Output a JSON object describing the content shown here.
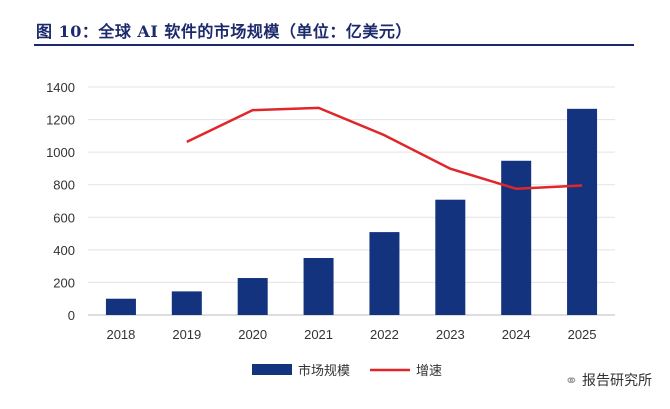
{
  "title": "图 10：全球 AI 软件的市场规模（单位：亿美元）",
  "watermark": "报告研究所",
  "chart_data": {
    "type": "bar",
    "categories": [
      "2018",
      "2019",
      "2020",
      "2021",
      "2022",
      "2023",
      "2024",
      "2025"
    ],
    "series": [
      {
        "name": "市场规模",
        "type": "bar",
        "color": "#13337f",
        "values": [
          100,
          145,
          227,
          350,
          509,
          708,
          947,
          1266
        ]
      },
      {
        "name": "增速",
        "type": "line",
        "color": "#e0262b",
        "values": [
          null,
          1063,
          1258,
          1272,
          1104,
          898,
          775,
          795
        ]
      }
    ],
    "ylim": [
      0,
      1400
    ],
    "yticks": [
      0,
      200,
      400,
      600,
      800,
      1000,
      1200,
      1400
    ],
    "grid": true,
    "legend": "bottom"
  }
}
